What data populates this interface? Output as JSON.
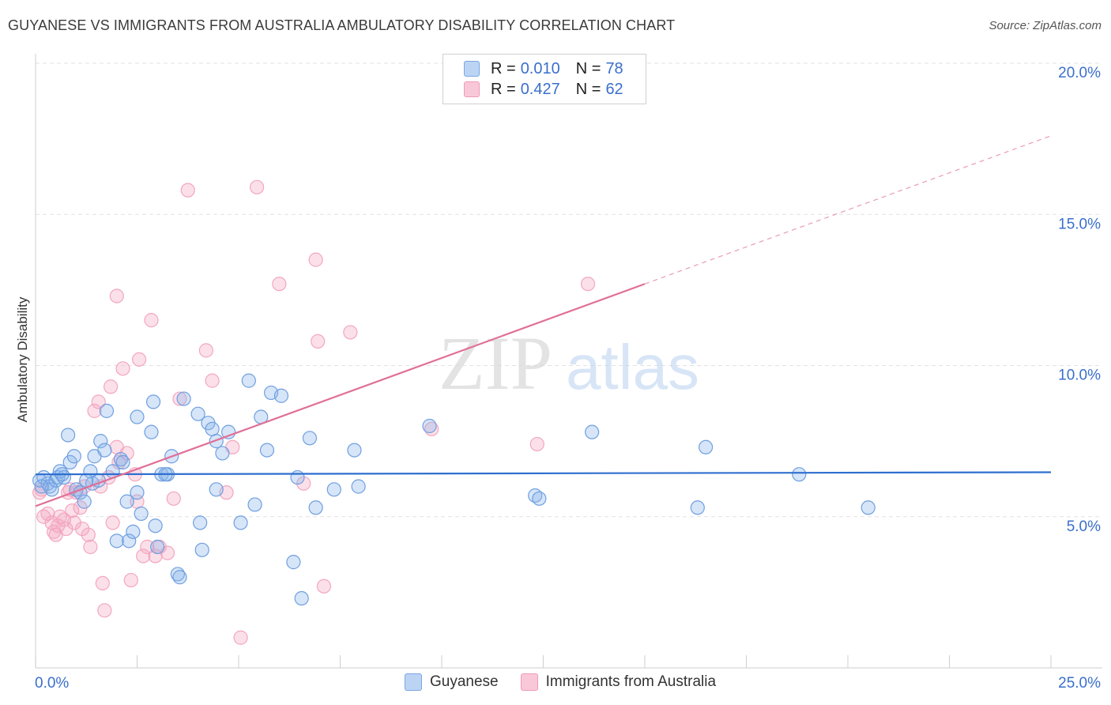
{
  "title": "GUYANESE VS IMMIGRANTS FROM AUSTRALIA AMBULATORY DISABILITY CORRELATION CHART",
  "source": "Source: ZipAtlas.com",
  "watermark": {
    "zip": "ZIP",
    "atlas": "atlas"
  },
  "legend": {
    "rows": [
      {
        "r_label": "R =",
        "r_value": "0.010",
        "n_label": "N =",
        "n_value": "78"
      },
      {
        "r_label": "R =",
        "r_value": "0.427",
        "n_label": "N =",
        "n_value": "62"
      }
    ]
  },
  "bottom_legend": {
    "series_a": "Guyanese",
    "series_b": "Immigrants from Australia"
  },
  "chart_data": {
    "type": "scatter",
    "title": "GUYANESE VS IMMIGRANTS FROM AUSTRALIA AMBULATORY DISABILITY CORRELATION CHART",
    "xlabel": "",
    "ylabel": "Ambulatory Disability",
    "xlim": [
      0,
      25
    ],
    "ylim": [
      0,
      20
    ],
    "x_tick_labels": [
      "0.0%",
      "25.0%"
    ],
    "y_ticks": [
      5,
      10,
      15,
      20
    ],
    "y_tick_labels": [
      "5.0%",
      "10.0%",
      "15.0%",
      "20.0%"
    ],
    "grid": true,
    "legend_position": "top-center",
    "colors": {
      "series_a": "#8ab4ec",
      "series_b": "#f3a6c0",
      "line_a": "#2f6fcf",
      "line_b": "#e07098",
      "tick_text": "#3a6fcc"
    },
    "series": [
      {
        "name": "Guyanese",
        "R": 0.01,
        "N": 78,
        "trend": {
          "x0": 0,
          "y0": 6.4,
          "x1": 25,
          "y1": 6.47,
          "dashed_from": null
        },
        "points": [
          [
            0.1,
            6.2
          ],
          [
            0.2,
            6.3
          ],
          [
            0.3,
            6.1
          ],
          [
            0.35,
            6.0
          ],
          [
            0.4,
            5.9
          ],
          [
            0.5,
            6.2
          ],
          [
            0.55,
            6.3
          ],
          [
            0.6,
            6.5
          ],
          [
            0.7,
            6.3
          ],
          [
            0.8,
            7.7
          ],
          [
            0.85,
            6.8
          ],
          [
            0.95,
            7.0
          ],
          [
            1.0,
            5.9
          ],
          [
            1.1,
            5.8
          ],
          [
            1.2,
            5.5
          ],
          [
            1.35,
            6.5
          ],
          [
            1.4,
            6.1
          ],
          [
            1.45,
            7.0
          ],
          [
            1.55,
            6.2
          ],
          [
            1.6,
            7.5
          ],
          [
            1.7,
            7.2
          ],
          [
            1.75,
            8.5
          ],
          [
            1.9,
            6.5
          ],
          [
            2.0,
            4.2
          ],
          [
            2.1,
            6.9
          ],
          [
            2.15,
            6.8
          ],
          [
            2.25,
            5.5
          ],
          [
            2.3,
            4.2
          ],
          [
            2.4,
            4.5
          ],
          [
            2.5,
            8.3
          ],
          [
            2.5,
            5.8
          ],
          [
            2.6,
            5.1
          ],
          [
            2.85,
            7.8
          ],
          [
            2.9,
            8.8
          ],
          [
            2.95,
            4.7
          ],
          [
            3.0,
            4.0
          ],
          [
            3.1,
            6.4
          ],
          [
            3.25,
            6.4
          ],
          [
            3.35,
            7.0
          ],
          [
            3.5,
            3.1
          ],
          [
            3.55,
            3.0
          ],
          [
            3.65,
            8.9
          ],
          [
            4.0,
            8.4
          ],
          [
            4.05,
            4.8
          ],
          [
            4.1,
            3.9
          ],
          [
            4.25,
            8.1
          ],
          [
            4.35,
            7.9
          ],
          [
            4.45,
            7.5
          ],
          [
            4.45,
            5.9
          ],
          [
            4.6,
            7.1
          ],
          [
            4.75,
            7.8
          ],
          [
            5.05,
            4.8
          ],
          [
            5.25,
            9.5
          ],
          [
            5.4,
            5.4
          ],
          [
            5.55,
            8.3
          ],
          [
            5.7,
            7.2
          ],
          [
            5.8,
            9.1
          ],
          [
            6.05,
            9.0
          ],
          [
            6.35,
            3.5
          ],
          [
            6.45,
            6.3
          ],
          [
            6.55,
            2.3
          ],
          [
            6.75,
            7.6
          ],
          [
            6.9,
            5.3
          ],
          [
            7.35,
            5.9
          ],
          [
            7.85,
            7.2
          ],
          [
            7.95,
            6.0
          ],
          [
            9.7,
            8.0
          ],
          [
            12.3,
            5.7
          ],
          [
            12.4,
            5.6
          ],
          [
            13.7,
            7.8
          ],
          [
            16.3,
            5.3
          ],
          [
            16.5,
            7.3
          ],
          [
            18.8,
            6.4
          ],
          [
            20.5,
            5.3
          ],
          [
            0.15,
            6.0
          ],
          [
            0.65,
            6.4
          ],
          [
            1.25,
            6.2
          ],
          [
            3.2,
            6.4
          ]
        ]
      },
      {
        "name": "Immigrants from Australia",
        "R": 0.427,
        "N": 62,
        "trend": {
          "x0": 0,
          "y0": 5.35,
          "x1": 25,
          "y1": 17.6,
          "solid_until_x": 15
        },
        "points": [
          [
            0.1,
            5.8
          ],
          [
            0.15,
            5.9
          ],
          [
            0.2,
            5.0
          ],
          [
            0.3,
            5.1
          ],
          [
            0.4,
            4.8
          ],
          [
            0.45,
            4.5
          ],
          [
            0.5,
            4.4
          ],
          [
            0.55,
            4.7
          ],
          [
            0.6,
            5.0
          ],
          [
            0.7,
            4.9
          ],
          [
            0.75,
            4.6
          ],
          [
            0.8,
            5.8
          ],
          [
            0.85,
            5.9
          ],
          [
            0.9,
            5.2
          ],
          [
            0.95,
            4.8
          ],
          [
            1.0,
            5.8
          ],
          [
            1.1,
            5.3
          ],
          [
            1.15,
            4.6
          ],
          [
            1.2,
            6.0
          ],
          [
            1.3,
            4.4
          ],
          [
            1.35,
            4.0
          ],
          [
            1.45,
            8.5
          ],
          [
            1.55,
            8.8
          ],
          [
            1.6,
            6.0
          ],
          [
            1.65,
            2.8
          ],
          [
            1.7,
            1.9
          ],
          [
            1.8,
            6.3
          ],
          [
            1.85,
            9.3
          ],
          [
            1.9,
            4.8
          ],
          [
            2.0,
            7.3
          ],
          [
            2.0,
            12.3
          ],
          [
            2.05,
            6.8
          ],
          [
            2.15,
            9.9
          ],
          [
            2.25,
            7.1
          ],
          [
            2.35,
            2.9
          ],
          [
            2.45,
            6.4
          ],
          [
            2.5,
            5.5
          ],
          [
            2.55,
            10.2
          ],
          [
            2.65,
            3.7
          ],
          [
            2.75,
            4.0
          ],
          [
            2.85,
            11.5
          ],
          [
            2.95,
            3.7
          ],
          [
            3.05,
            4.0
          ],
          [
            3.25,
            3.8
          ],
          [
            3.4,
            5.6
          ],
          [
            3.55,
            8.9
          ],
          [
            3.75,
            15.8
          ],
          [
            4.2,
            10.5
          ],
          [
            4.35,
            9.5
          ],
          [
            4.7,
            5.8
          ],
          [
            4.85,
            7.3
          ],
          [
            5.05,
            1.0
          ],
          [
            5.45,
            15.9
          ],
          [
            6.0,
            12.7
          ],
          [
            6.6,
            6.1
          ],
          [
            6.9,
            13.5
          ],
          [
            6.95,
            10.8
          ],
          [
            7.1,
            2.7
          ],
          [
            7.75,
            11.1
          ],
          [
            9.75,
            7.9
          ],
          [
            12.35,
            7.4
          ],
          [
            13.6,
            12.7
          ]
        ]
      }
    ]
  }
}
